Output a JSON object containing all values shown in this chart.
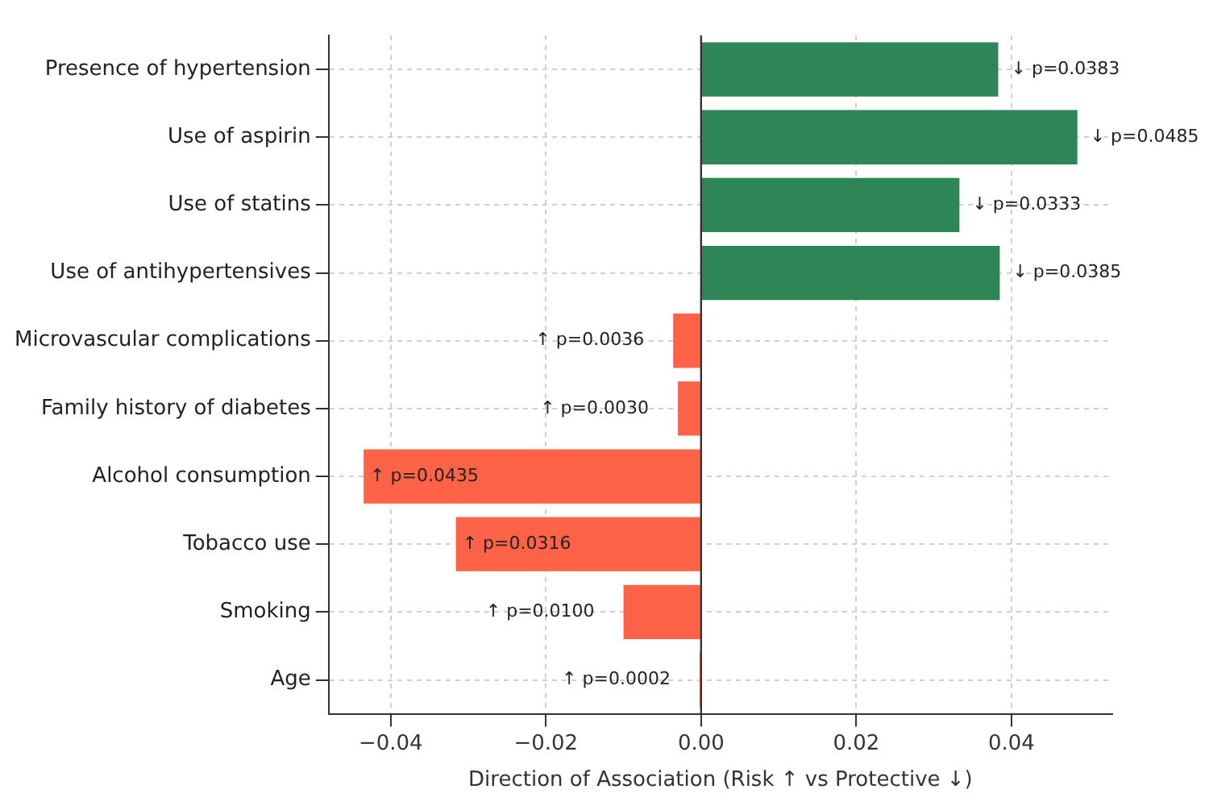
{
  "chart_data": {
    "type": "bar",
    "orientation": "horizontal",
    "xlabel": "Direction of Association (Risk ↑ vs Protective ↓)",
    "categories": [
      "Presence of hypertension",
      "Use of aspirin",
      "Use of statins",
      "Use of antihypertensives",
      "Microvascular complications",
      "Family history of diabetes",
      "Alcohol consumption",
      "Tobacco use",
      "Smoking",
      "Age"
    ],
    "values": [
      0.0383,
      0.0485,
      0.0333,
      0.0385,
      -0.0036,
      -0.003,
      -0.0435,
      -0.0316,
      -0.01,
      -0.0002
    ],
    "colors": [
      "#2e8555",
      "#2e8555",
      "#2e8555",
      "#2e8555",
      "#ff6347",
      "#ff6347",
      "#ff6347",
      "#ff6347",
      "#ff6347",
      "#ff6347"
    ],
    "annotations": [
      {
        "text": "↓ p=0.0383",
        "x": 0.0383,
        "y": "Presence of hypertension"
      },
      {
        "text": "↓ p=0.0485",
        "x": 0.0485,
        "y": "Use of aspirin"
      },
      {
        "text": "↓ p=0.0333",
        "x": 0.0333,
        "y": "Use of statins"
      },
      {
        "text": "↓ p=0.0385",
        "x": 0.0385,
        "y": "Use of antihypertensives"
      },
      {
        "text": "↑ p=0.0036",
        "x": -0.0036,
        "y": "Microvascular complications"
      },
      {
        "text": "↑ p=0.0030",
        "x": -0.003,
        "y": "Family history of diabetes"
      },
      {
        "text": "↑ p=0.0435",
        "x": -0.0435,
        "y": "Alcohol consumption"
      },
      {
        "text": "↑ p=0.0316",
        "x": -0.0316,
        "y": "Tobacco use"
      },
      {
        "text": "↑ p=0.0100",
        "x": -0.01,
        "y": "Smoking"
      },
      {
        "text": "↑ p=0.0002",
        "x": -0.0002,
        "y": "Age"
      }
    ],
    "xlim": [
      -0.048,
      0.053
    ],
    "xticks": [
      {
        "value": -0.04,
        "label": "−0.04"
      },
      {
        "value": -0.02,
        "label": "−0.02"
      },
      {
        "value": 0,
        "label": "0.00"
      },
      {
        "value": 0.02,
        "label": "0.02"
      },
      {
        "value": 0.04,
        "label": "0.04"
      }
    ],
    "ref_lines": [
      {
        "axis": "x",
        "value": 0,
        "color": "#333333"
      }
    ],
    "grid": true,
    "legend": false
  }
}
